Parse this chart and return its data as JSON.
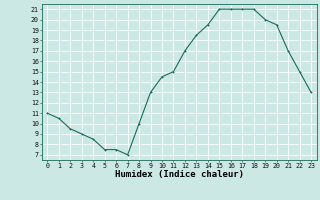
{
  "x": [
    0,
    1,
    2,
    3,
    4,
    5,
    6,
    7,
    8,
    9,
    10,
    11,
    12,
    13,
    14,
    15,
    16,
    17,
    18,
    19,
    20,
    21,
    22,
    23
  ],
  "y": [
    11,
    10.5,
    9.5,
    9,
    8.5,
    7.5,
    7.5,
    7,
    10,
    13,
    14.5,
    15,
    17,
    18.5,
    19.5,
    21,
    21,
    21,
    21,
    20,
    19.5,
    17,
    15,
    13
  ],
  "line_color": "#1a6b5a",
  "bg_color": "#cce8e4",
  "grid_color": "#ffffff",
  "xlabel": "Humidex (Indice chaleur)",
  "xlim": [
    -0.5,
    23.5
  ],
  "ylim": [
    6.5,
    21.5
  ],
  "yticks": [
    7,
    8,
    9,
    10,
    11,
    12,
    13,
    14,
    15,
    16,
    17,
    18,
    19,
    20,
    21
  ],
  "xticks": [
    0,
    1,
    2,
    3,
    4,
    5,
    6,
    7,
    8,
    9,
    10,
    11,
    12,
    13,
    14,
    15,
    16,
    17,
    18,
    19,
    20,
    21,
    22,
    23
  ],
  "tick_fontsize": 4.8,
  "label_fontsize": 6.5,
  "marker_size": 2.0,
  "line_width": 0.8
}
